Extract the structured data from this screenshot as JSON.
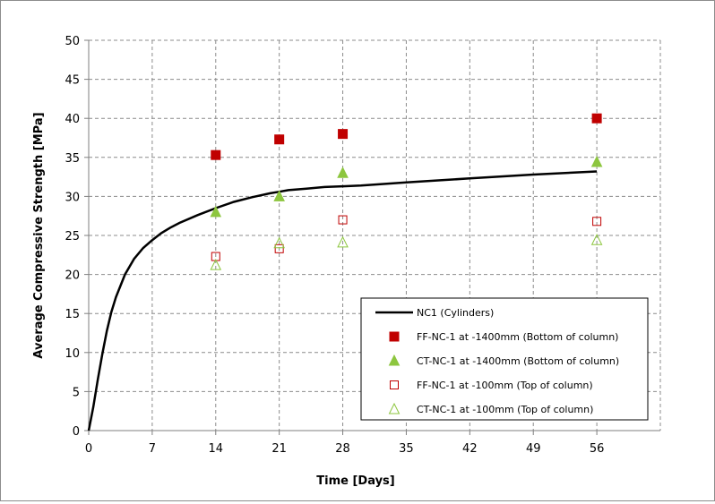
{
  "chart_data": {
    "type": "scatter",
    "xlabel": "Time [Days]",
    "ylabel": "Average Compressive Strength [MPa]",
    "xlim": [
      0,
      63
    ],
    "ylim": [
      0,
      50
    ],
    "xticks": [
      0,
      7,
      14,
      21,
      28,
      35,
      42,
      49,
      56
    ],
    "yticks": [
      0,
      5,
      10,
      15,
      20,
      25,
      30,
      35,
      40,
      45,
      50
    ],
    "grid": true,
    "legend_position": "bottom-right",
    "series": [
      {
        "name": "NC1 (Cylinders)",
        "kind": "line",
        "color": "#000000",
        "x": [
          0,
          0.5,
          1,
          1.5,
          2,
          2.5,
          3,
          4,
          5,
          6,
          7,
          8,
          9,
          10,
          12,
          14,
          16,
          18,
          20,
          21,
          22,
          24,
          26,
          28,
          30,
          35,
          42,
          49,
          56
        ],
        "y": [
          0,
          3,
          6.5,
          9.8,
          12.8,
          15.2,
          17.1,
          20.0,
          22.0,
          23.4,
          24.4,
          25.3,
          26.0,
          26.6,
          27.6,
          28.5,
          29.3,
          29.9,
          30.4,
          30.6,
          30.8,
          31.0,
          31.2,
          31.3,
          31.4,
          31.8,
          32.3,
          32.8,
          33.2
        ]
      },
      {
        "name": "FF-NC-1 at -1400mm (Bottom of column)",
        "kind": "square-filled",
        "color": "#c00000",
        "x": [
          14,
          21,
          28,
          56
        ],
        "y": [
          35.3,
          37.3,
          38.0,
          40.0
        ]
      },
      {
        "name": "CT-NC-1 at -1400mm (Bottom of column)",
        "kind": "triangle-filled",
        "color": "#8dc63f",
        "x": [
          14,
          21,
          28,
          56
        ],
        "y": [
          28.0,
          30.0,
          33.0,
          34.4
        ]
      },
      {
        "name": "FF-NC-1 at -100mm (Top of column)",
        "kind": "square-open",
        "color": "#c00000",
        "x": [
          14,
          21,
          28,
          56
        ],
        "y": [
          22.3,
          23.3,
          27.0,
          26.8
        ]
      },
      {
        "name": "CT-NC-1 at -100mm (Top of column)",
        "kind": "triangle-open",
        "color": "#8dc63f",
        "x": [
          14,
          21,
          28,
          56
        ],
        "y": [
          21.2,
          24.0,
          24.1,
          24.4
        ]
      }
    ]
  }
}
